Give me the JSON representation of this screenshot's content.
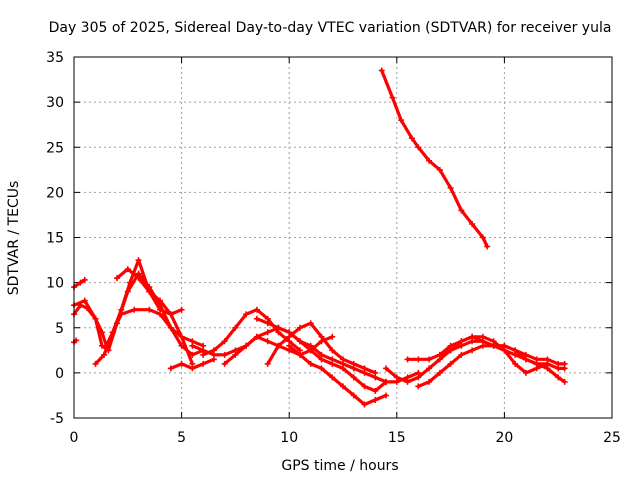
{
  "chart_data": {
    "type": "scatter",
    "title": "Day 305 of 2025, Sidereal Day-to-day VTEC variation (SDTVAR) for receiver yula",
    "xlabel": "GPS time / hours",
    "ylabel": "SDTVAR / TECUs",
    "xlim": [
      0,
      25
    ],
    "ylim": [
      -5,
      35
    ],
    "xticks": [
      "0",
      "5",
      "10",
      "15",
      "20",
      "25"
    ],
    "yticks": [
      "-5",
      "0",
      "5",
      "10",
      "15",
      "20",
      "25",
      "30",
      "35"
    ],
    "grid": true,
    "series_color": "#ff0000",
    "series": [
      {
        "name": "trace-1",
        "x": [
          0.0,
          0.3,
          0.6,
          1.0,
          1.3,
          1.5,
          1.8,
          2.2,
          2.6,
          3.0,
          3.5,
          4.0,
          4.5,
          5.0
        ],
        "y": [
          6.5,
          7.5,
          7.2,
          6.0,
          4.5,
          3.0,
          4.5,
          7.0,
          10.0,
          12.5,
          9.0,
          7.0,
          6.5,
          7.0
        ]
      },
      {
        "name": "trace-2",
        "x": [
          0.0,
          0.5,
          1.0,
          1.3,
          1.6,
          2.0,
          2.5,
          3.0,
          3.5,
          4.0,
          4.5,
          5.0,
          5.5,
          6.0
        ],
        "y": [
          7.5,
          8.0,
          6.0,
          3.0,
          2.5,
          5.5,
          9.0,
          11.0,
          9.5,
          7.5,
          5.0,
          3.0,
          2.0,
          2.5
        ]
      },
      {
        "name": "trace-3",
        "x": [
          0.0,
          0.3,
          0.5
        ],
        "y": [
          9.5,
          10.0,
          10.3
        ]
      },
      {
        "name": "trace-4",
        "x": [
          0.0,
          0.1
        ],
        "y": [
          3.4,
          3.6
        ]
      },
      {
        "name": "trace-5",
        "x": [
          1.0,
          1.4,
          1.8,
          2.2,
          2.8,
          3.5,
          4.0,
          4.5,
          5.0,
          5.5,
          6.0
        ],
        "y": [
          1.0,
          2.0,
          4.5,
          6.5,
          7.0,
          7.0,
          6.5,
          5.0,
          4.0,
          3.5,
          3.0
        ]
      },
      {
        "name": "trace-6",
        "x": [
          2.0,
          2.5,
          3.0,
          3.5,
          4.0,
          4.5,
          5.0,
          5.5
        ],
        "y": [
          10.5,
          11.5,
          10.5,
          9.0,
          8.0,
          6.5,
          4.0,
          1.0
        ]
      },
      {
        "name": "trace-7",
        "x": [
          4.5,
          5.0,
          5.5,
          6.0,
          6.5
        ],
        "y": [
          0.5,
          1.0,
          0.5,
          1.0,
          1.5
        ]
      },
      {
        "name": "trace-8",
        "x": [
          5.5,
          6.0,
          6.5,
          7.0,
          7.5,
          8.0,
          8.5,
          9.0,
          9.5,
          10.0,
          10.5,
          11.0,
          11.5,
          12.0,
          12.5,
          13.0,
          13.5,
          14.0,
          14.5
        ],
        "y": [
          3.0,
          2.5,
          2.0,
          2.0,
          2.5,
          3.0,
          4.0,
          4.5,
          5.0,
          4.5,
          3.5,
          2.5,
          1.5,
          1.0,
          0.5,
          -0.5,
          -1.5,
          -2.0,
          -1.0
        ]
      },
      {
        "name": "trace-9",
        "x": [
          6.0,
          6.5,
          7.0,
          7.5,
          8.0,
          8.5,
          9.0,
          9.5,
          10.0,
          10.5
        ],
        "y": [
          2.0,
          2.5,
          3.5,
          5.0,
          6.5,
          7.0,
          6.0,
          4.5,
          3.5,
          2.5
        ]
      },
      {
        "name": "trace-10",
        "x": [
          7.0,
          7.5,
          8.0,
          8.5,
          9.0,
          9.5,
          10.0,
          10.5,
          11.0,
          11.5,
          12.0,
          12.5,
          13.0,
          13.5,
          14.0,
          14.5
        ],
        "y": [
          1.0,
          2.0,
          3.0,
          4.0,
          3.5,
          3.0,
          2.5,
          2.0,
          1.0,
          0.5,
          -0.5,
          -1.5,
          -2.5,
          -3.5,
          -3.0,
          -2.5
        ]
      },
      {
        "name": "trace-11",
        "x": [
          8.5,
          9.0,
          9.5,
          10.0,
          10.5,
          11.0,
          11.5,
          12.0,
          12.5,
          13.0,
          13.5,
          14.0,
          14.5,
          15.0,
          15.5,
          16.0
        ],
        "y": [
          6.0,
          5.5,
          5.0,
          4.5,
          3.5,
          3.0,
          2.0,
          1.5,
          1.0,
          0.5,
          0.0,
          -0.5,
          -1.0,
          -1.0,
          -0.5,
          0.0
        ]
      },
      {
        "name": "trace-12",
        "x": [
          9.0,
          9.5,
          10.0,
          10.5,
          11.0,
          11.5,
          12.0,
          12.5,
          13.0,
          13.5,
          14.0
        ],
        "y": [
          1.0,
          3.0,
          4.0,
          5.0,
          5.5,
          4.0,
          2.5,
          1.5,
          1.0,
          0.5,
          0.0
        ]
      },
      {
        "name": "trace-13",
        "x": [
          10.0,
          10.5,
          11.0,
          11.5,
          12.0
        ],
        "y": [
          3.0,
          2.0,
          2.5,
          3.5,
          4.0
        ]
      },
      {
        "name": "trace-14",
        "x": [
          14.3,
          14.8,
          15.2,
          15.7,
          16.0,
          16.5,
          17.0,
          17.5,
          18.0,
          18.5,
          19.0,
          19.2
        ],
        "y": [
          33.5,
          30.5,
          28.0,
          26.0,
          25.0,
          23.5,
          22.5,
          20.5,
          18.0,
          16.5,
          15.0,
          14.0
        ]
      },
      {
        "name": "trace-15",
        "x": [
          14.5,
          15.0,
          15.5,
          16.0,
          16.5,
          17.0,
          17.5,
          18.0,
          18.5,
          19.0,
          19.5,
          20.0,
          20.5,
          21.0,
          21.5,
          22.0,
          22.5,
          22.8
        ],
        "y": [
          0.5,
          -0.5,
          -1.0,
          -0.5,
          0.5,
          1.5,
          2.5,
          3.0,
          3.5,
          3.5,
          3.0,
          2.5,
          2.0,
          1.5,
          1.0,
          1.0,
          0.5,
          0.5
        ]
      },
      {
        "name": "trace-16",
        "x": [
          15.5,
          16.0,
          16.5,
          17.0,
          17.5,
          18.0,
          18.5,
          19.0,
          19.5,
          20.0,
          20.5,
          21.0,
          21.5,
          22.0,
          22.5,
          22.8
        ],
        "y": [
          1.5,
          1.5,
          1.5,
          2.0,
          3.0,
          3.5,
          4.0,
          3.5,
          3.0,
          3.0,
          2.5,
          1.5,
          1.0,
          0.5,
          -0.5,
          -1.0
        ]
      },
      {
        "name": "trace-17",
        "x": [
          16.0,
          16.5,
          17.0,
          17.5,
          18.0,
          18.5,
          19.0,
          19.5,
          20.0,
          20.5,
          21.0,
          21.5,
          22.0,
          22.5,
          22.8
        ],
        "y": [
          -1.5,
          -1.0,
          0.0,
          1.0,
          2.0,
          2.5,
          3.0,
          3.0,
          3.0,
          2.5,
          2.0,
          1.5,
          1.5,
          1.0,
          1.0
        ]
      },
      {
        "name": "trace-18",
        "x": [
          17.0,
          17.5,
          18.0,
          18.5,
          19.0,
          19.5,
          20.0,
          20.5,
          21.0,
          21.5,
          22.0
        ],
        "y": [
          2.0,
          2.5,
          3.5,
          4.0,
          4.0,
          3.5,
          2.5,
          1.0,
          0.0,
          0.5,
          1.0
        ]
      }
    ]
  }
}
